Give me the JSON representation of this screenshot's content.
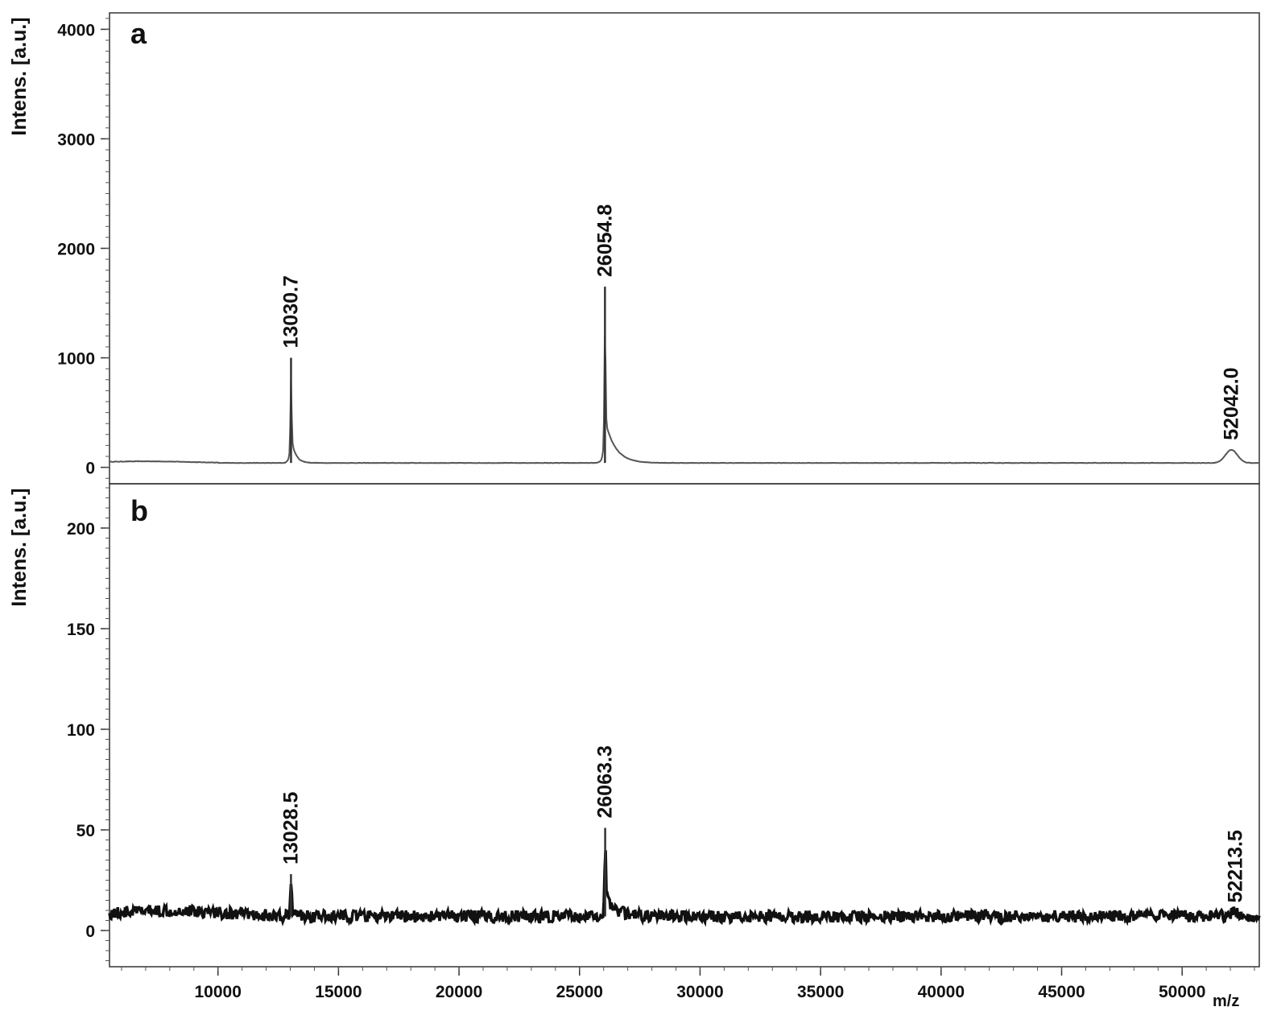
{
  "chart_data": [
    {
      "panel": "a",
      "type": "line",
      "ylabel": "Intens. [a.u.]",
      "xlabel": "m/z",
      "xlim": [
        5500,
        53200
      ],
      "ylim": [
        -150,
        4150
      ],
      "yticks": [
        0,
        1000,
        2000,
        3000,
        4000
      ],
      "grid": false,
      "baseline": 40,
      "noise": 2,
      "peaks": [
        {
          "x": 13030.7,
          "y": 1000,
          "label": "13030.7"
        },
        {
          "x": 26054.8,
          "y": 1650,
          "label": "26054.8"
        },
        {
          "x": 52042.0,
          "y": 160,
          "label": "52042.0"
        }
      ]
    },
    {
      "panel": "b",
      "type": "line",
      "ylabel": "Intens. [a.u.]",
      "xlabel": "m/z",
      "xlim": [
        5500,
        53200
      ],
      "ylim": [
        -18,
        222
      ],
      "yticks": [
        0,
        50,
        100,
        150,
        200
      ],
      "xticks": [
        10000,
        15000,
        20000,
        25000,
        30000,
        35000,
        40000,
        45000,
        50000
      ],
      "grid": false,
      "baseline": 7,
      "noise": 3,
      "peaks": [
        {
          "x": 13028.5,
          "y": 28,
          "label": "13028.5"
        },
        {
          "x": 26063.3,
          "y": 51,
          "label": "26063.3"
        },
        {
          "x": 52213.5,
          "y": 9,
          "label": "52213.5"
        }
      ]
    }
  ]
}
